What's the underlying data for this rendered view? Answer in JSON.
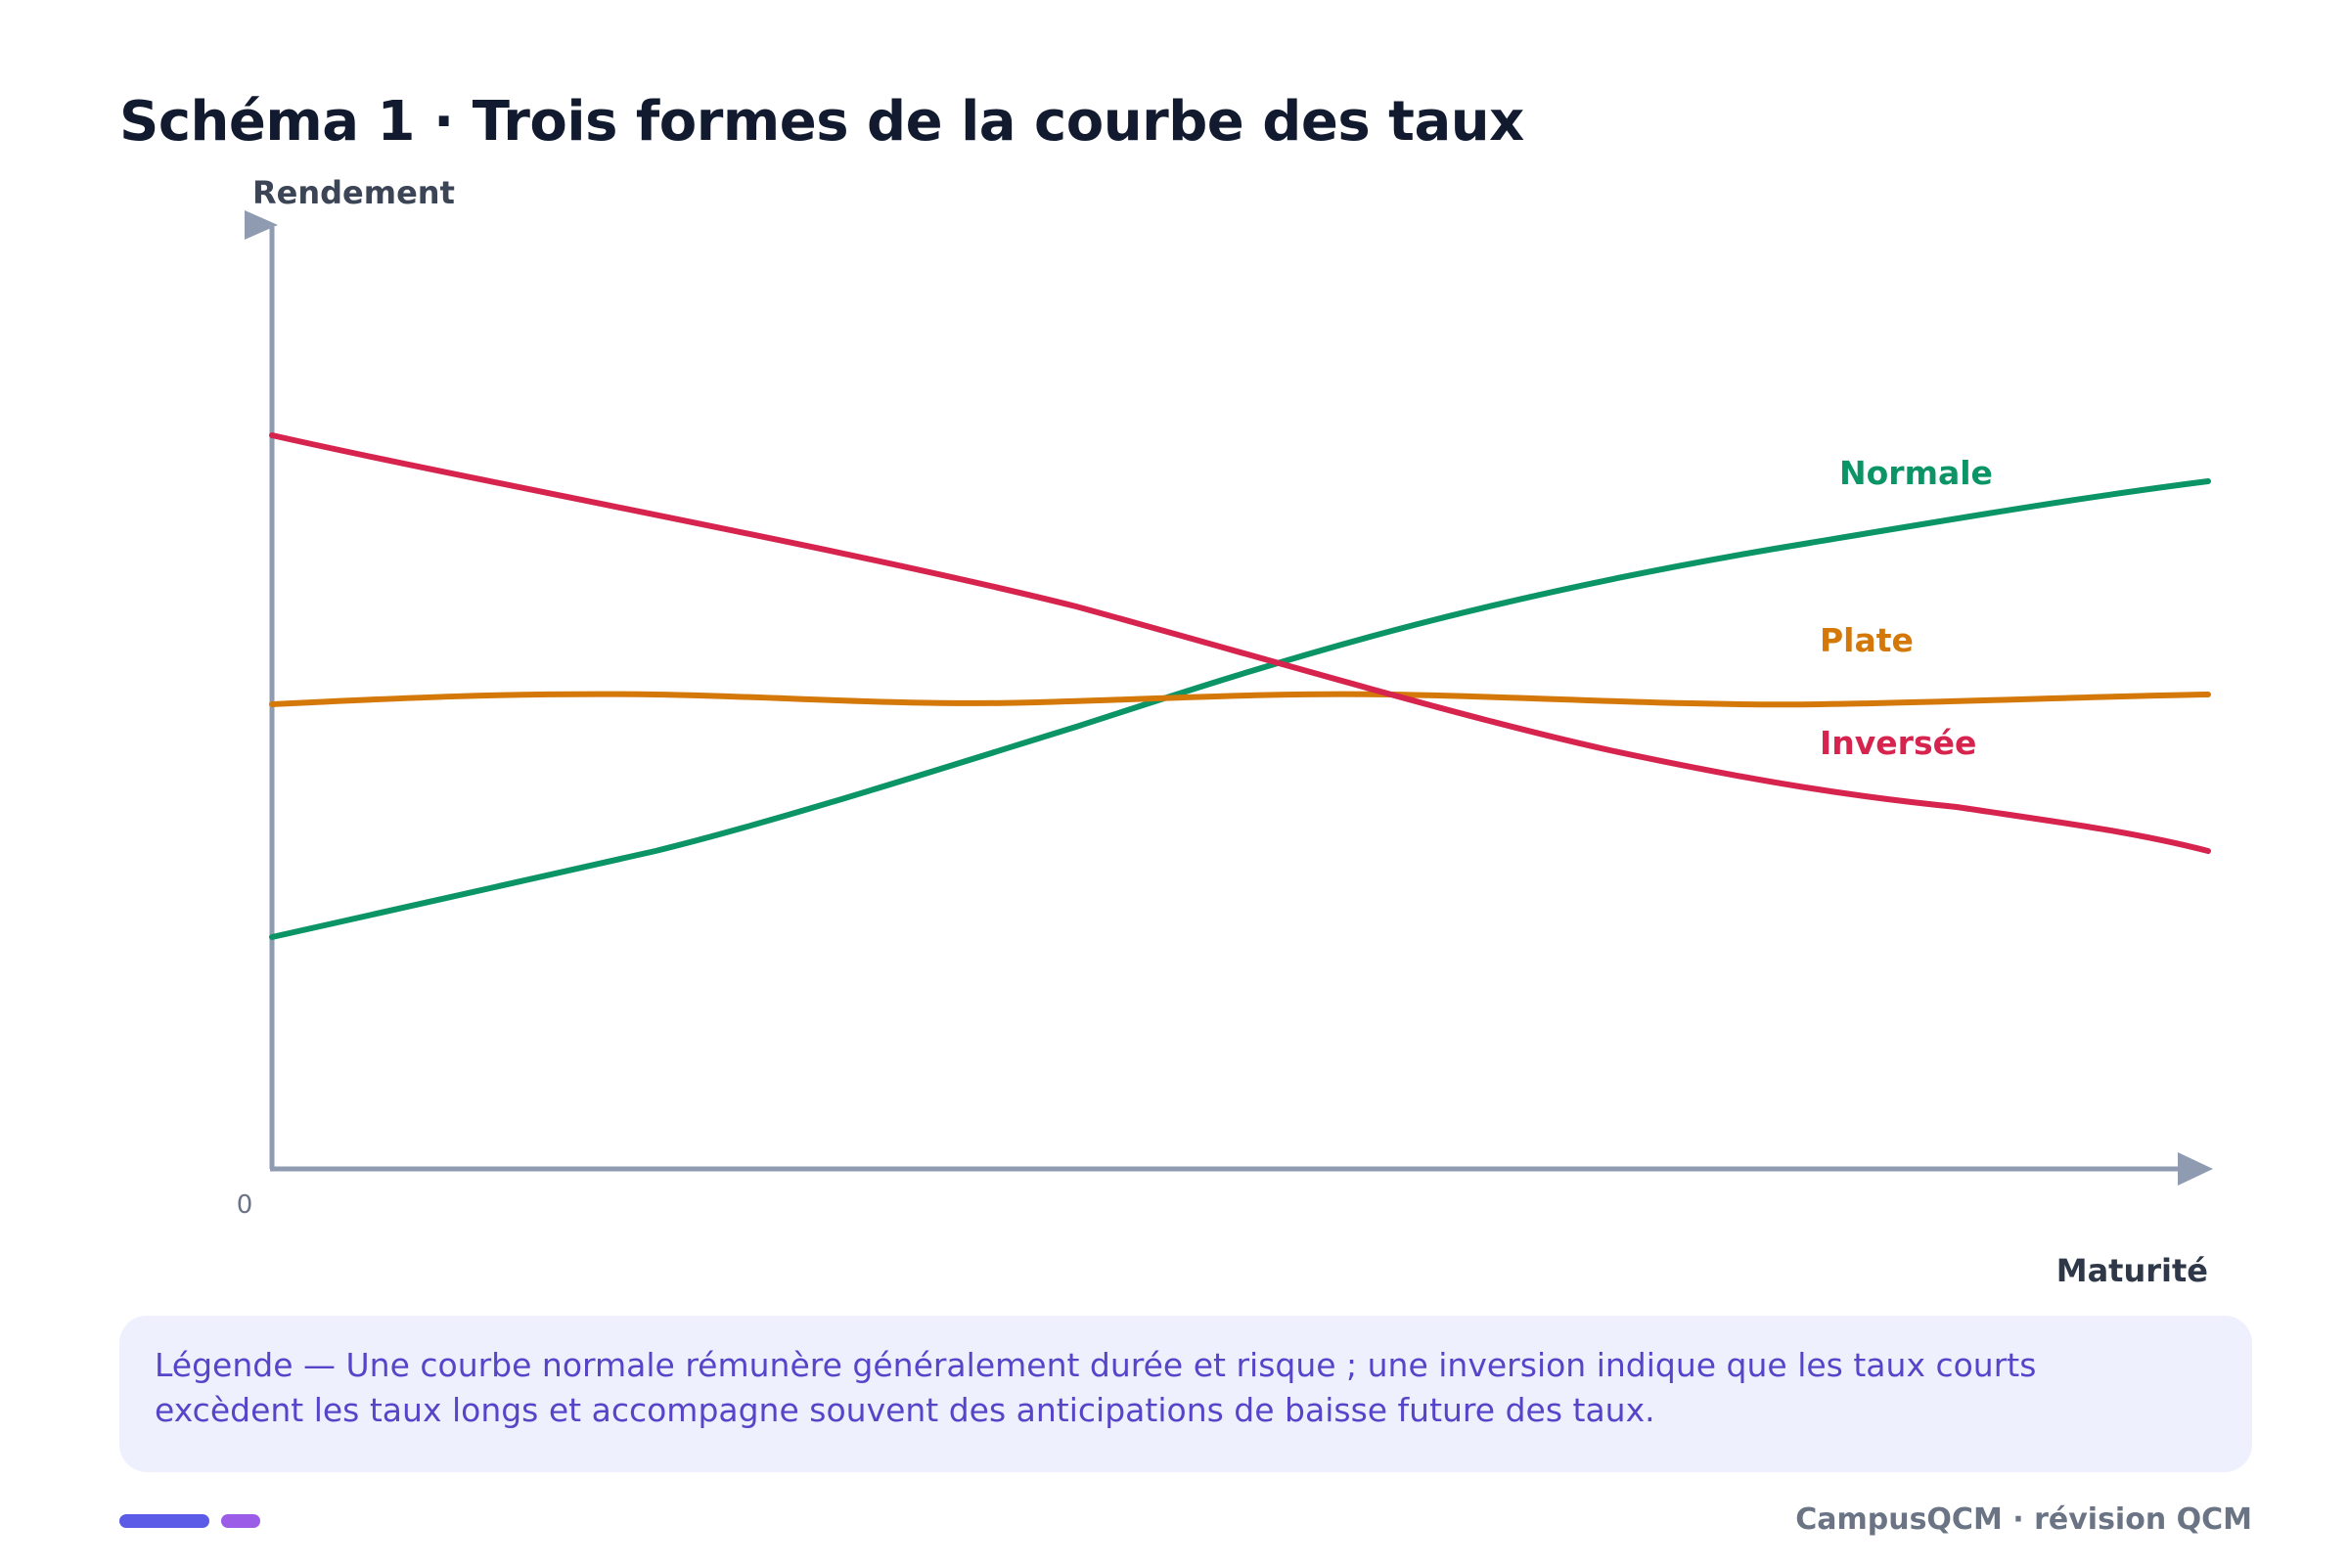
{
  "title": "Schéma 1 · Trois formes de la courbe des taux",
  "axes": {
    "y_label": "Rendement",
    "x_label": "Maturité",
    "origin_label": "0"
  },
  "curves": [
    {
      "name": "Normale",
      "color": "#0b9466"
    },
    {
      "name": "Plate",
      "color": "#d4780a"
    },
    {
      "name": "Inversée",
      "color": "#d6244e"
    }
  ],
  "legend": {
    "text": "Légende — Une courbe normale rémunère généralement durée et risque ; une inversion indique que les taux courts excèdent les taux longs et accompagne souvent des anticipations de baisse future des taux."
  },
  "footer": {
    "credit": "CampusQCM · révision QCM"
  },
  "colors": {
    "axis": "#8f9bb0",
    "title": "#111a2e",
    "legend_bg": "#eef1fd",
    "legend_text": "#5546c9",
    "pill_1": "#5b5be8",
    "pill_2": "#9b5ce8",
    "footer_text": "#6b7484"
  }
}
